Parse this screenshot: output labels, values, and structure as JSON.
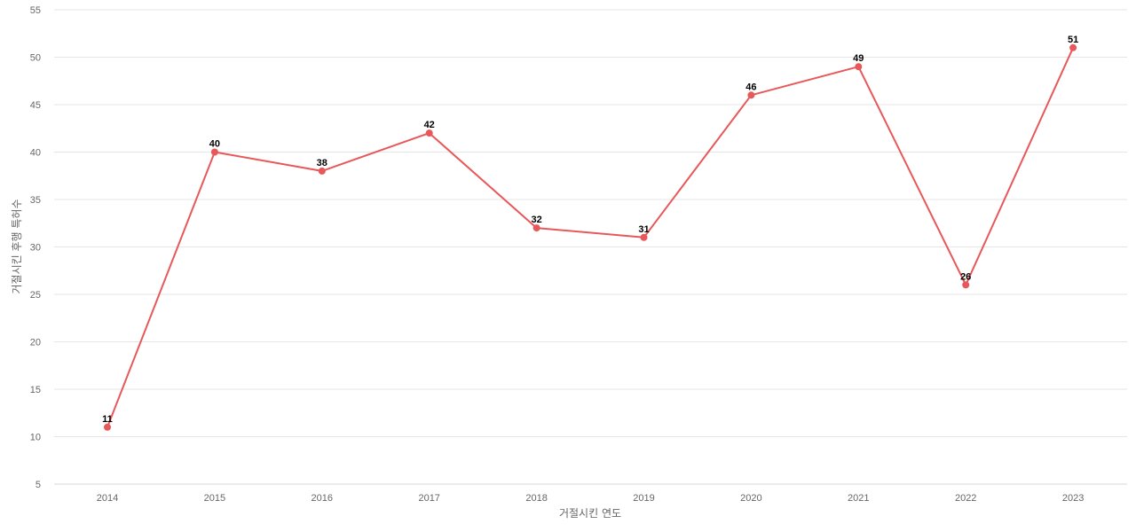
{
  "chart_data": {
    "type": "line",
    "title": "",
    "xlabel": "거절시킨 연도",
    "ylabel": "거절시킨 후행 특허수",
    "categories": [
      "2014",
      "2015",
      "2016",
      "2017",
      "2018",
      "2019",
      "2020",
      "2021",
      "2022",
      "2023"
    ],
    "series": [
      {
        "values": [
          11,
          40,
          38,
          42,
          32,
          31,
          46,
          49,
          26,
          51
        ],
        "color": "#e8585a"
      }
    ],
    "ylim": [
      5,
      55
    ],
    "yticks": [
      5,
      10,
      15,
      20,
      25,
      30,
      35,
      40,
      45,
      50,
      55
    ],
    "grid": true,
    "data_labels": true
  }
}
